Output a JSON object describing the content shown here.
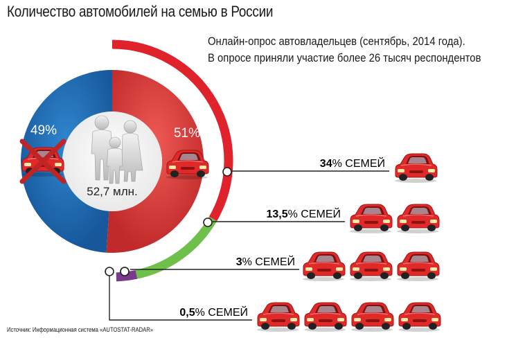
{
  "title": "Количество автомобилей на семью в России",
  "subtitle_line1": "Онлайн-опрос автовладельцев (сентябрь, 2014 года).",
  "subtitle_line2": "В опросе приняли участие более 26 тысяч респондентов",
  "source": "Источник: Информационная система «AUTOSTAT-RADAR»",
  "colors": {
    "no_car": "#1f6db3",
    "with_car": "#d83a3a",
    "ring_red": "#e0222a",
    "ring_green": "#6ec04a",
    "ring_purple": "#7a3a8c",
    "car": "#e02a2a"
  },
  "chart_data": {
    "type": "pie",
    "center_label": "52,7 млн.",
    "slices": [
      {
        "label": "49%",
        "value": 49,
        "meaning": "no-car",
        "icon": "crossed-car-icon"
      },
      {
        "label": "51%",
        "value": 51,
        "meaning": "car",
        "icon": "car-icon"
      }
    ],
    "breakdown": [
      {
        "pct": "34",
        "label": "% СЕМЕЙ",
        "cars": 1
      },
      {
        "pct": "13,5",
        "label": "% СЕМЕЙ",
        "cars": 2
      },
      {
        "pct": "3",
        "label": "% СЕМЕЙ",
        "cars": 3
      },
      {
        "pct": "0,5",
        "label": "% СЕМЕЙ",
        "cars": 4
      }
    ]
  }
}
